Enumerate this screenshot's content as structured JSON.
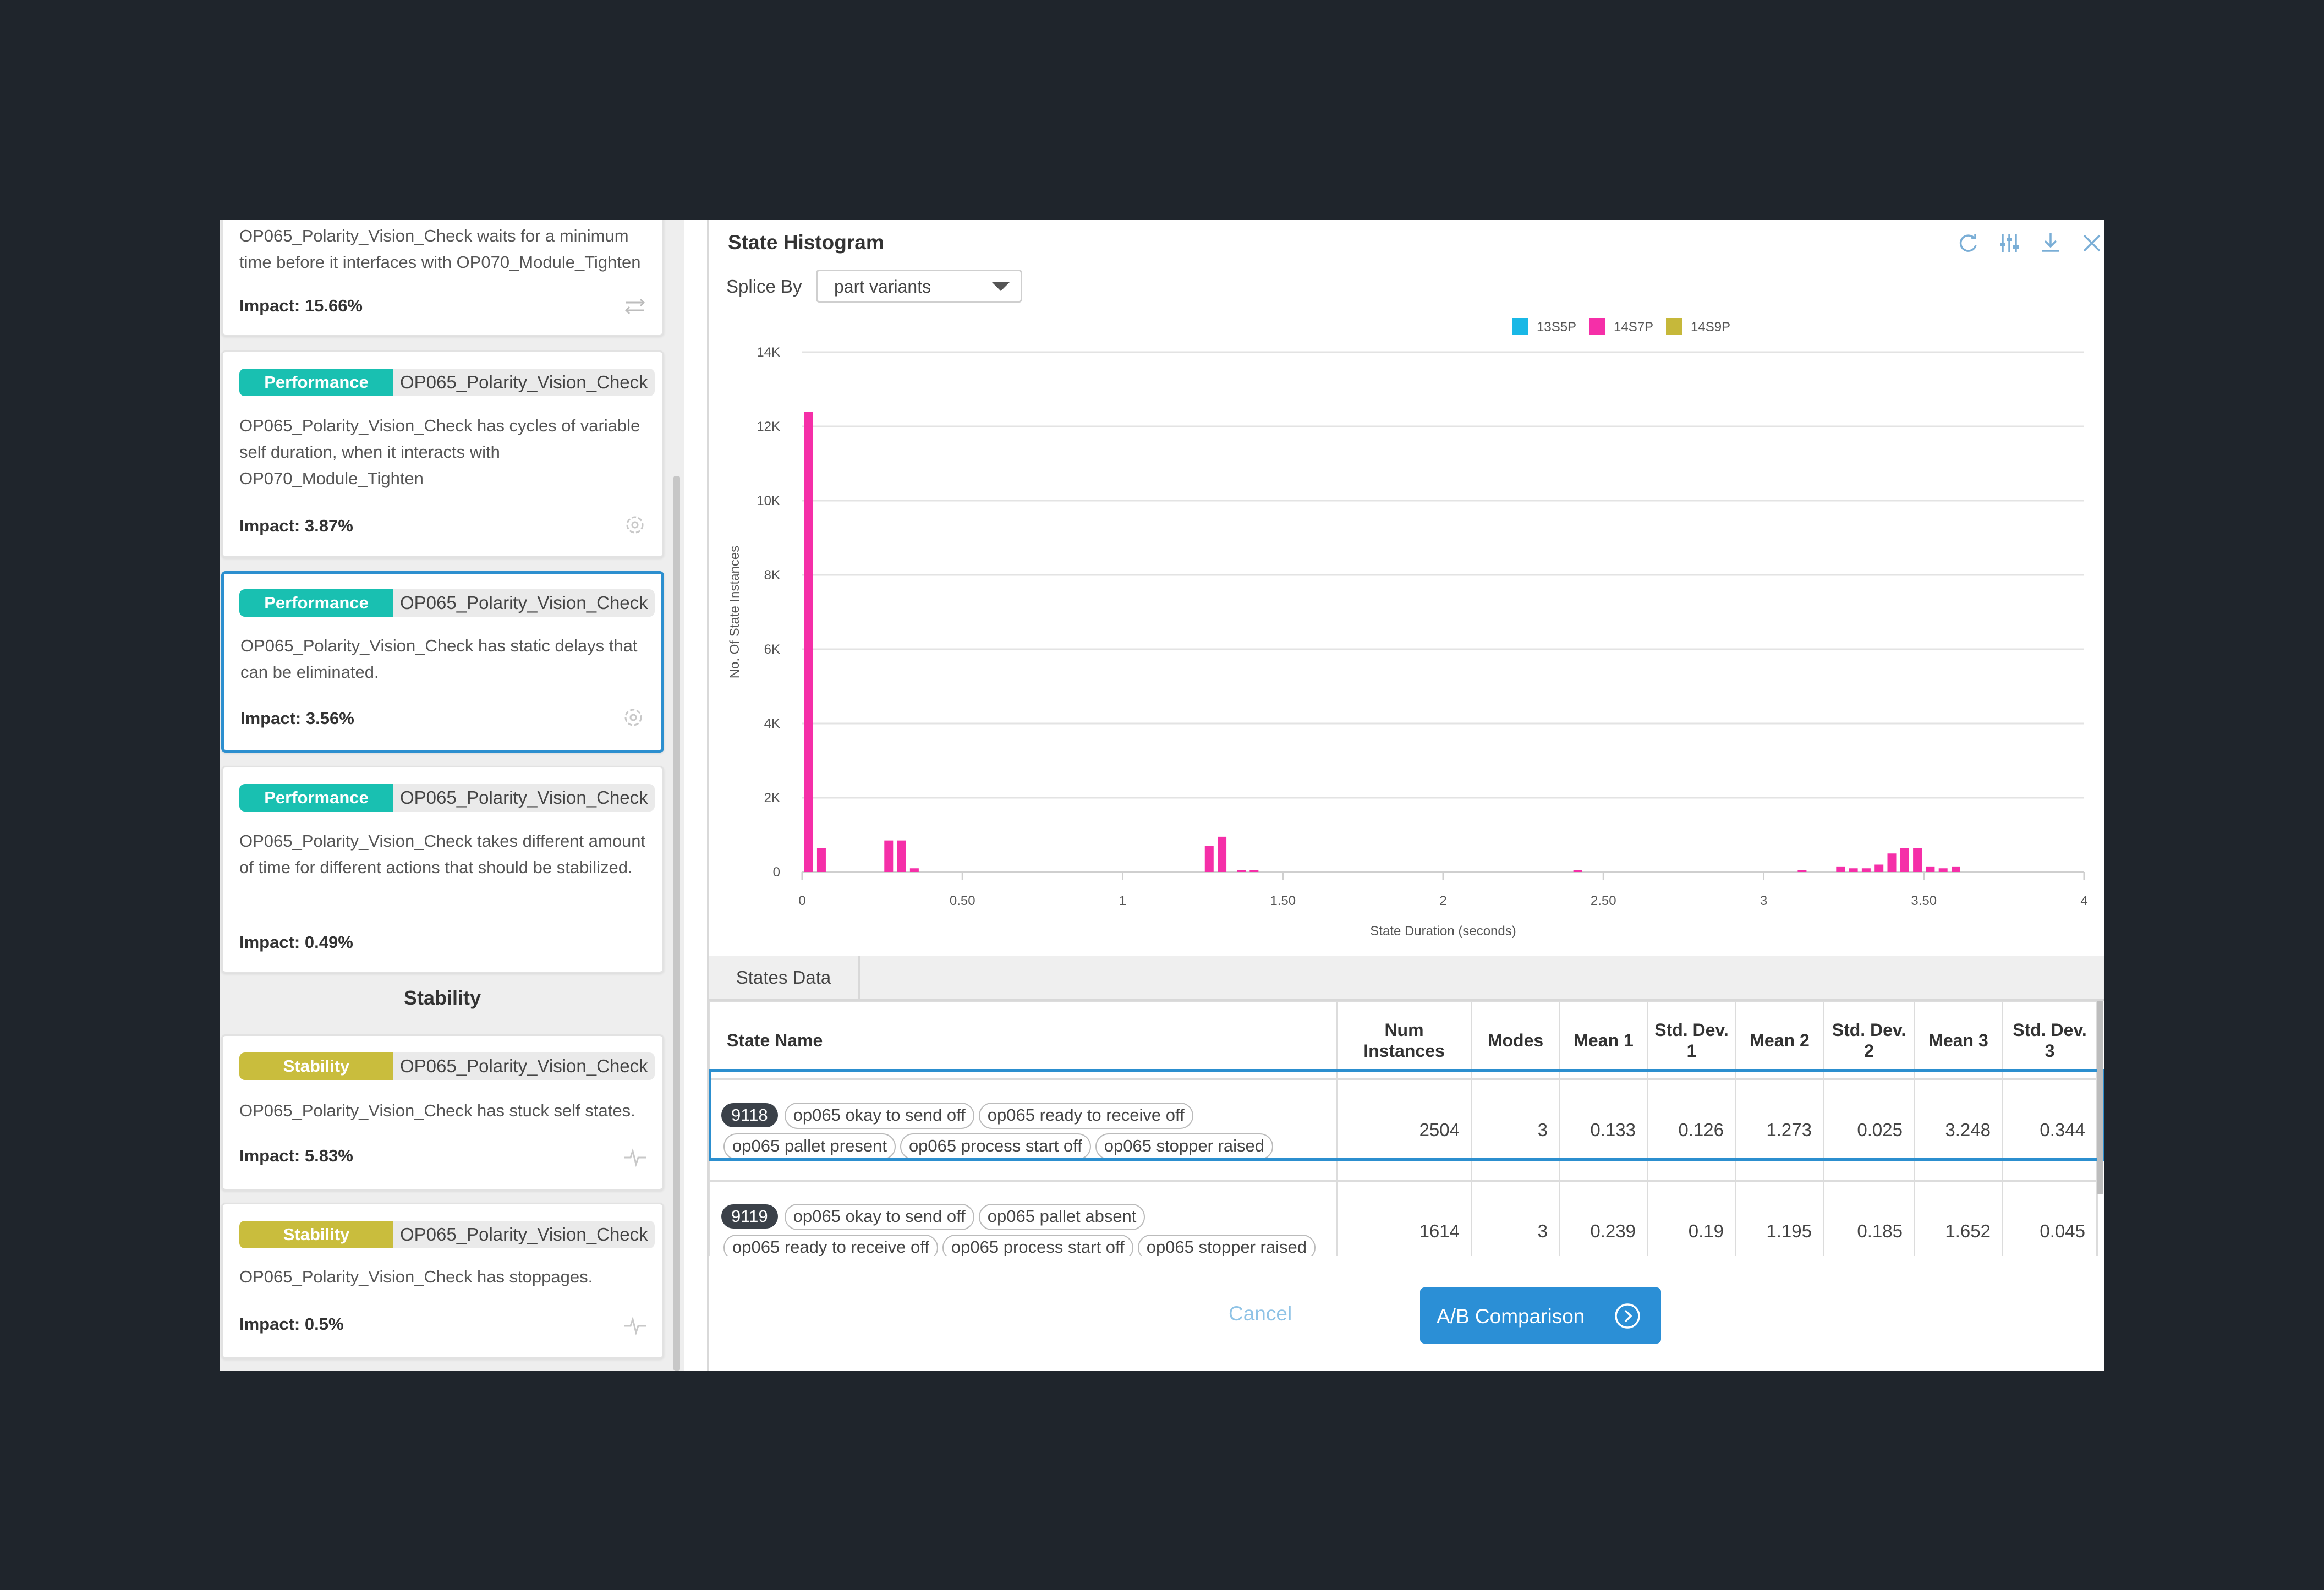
{
  "left_panel": {
    "card0": {
      "description": "OP065_Polarity_Vision_Check waits for a minimum time before it interfaces with OP070_Module_Tighten",
      "impact": "Impact: 15.66%",
      "icon": "swap-arrows-icon"
    },
    "card1": {
      "tag": "Performance",
      "station": "OP065_Polarity_Vision_Check",
      "description": "OP065_Polarity_Vision_Check has cycles of variable self duration, when it interacts with OP070_Module_Tighten",
      "impact": "Impact: 3.87%",
      "icon": "target-icon"
    },
    "card2": {
      "tag": "Performance",
      "station": "OP065_Polarity_Vision_Check",
      "description": "OP065_Polarity_Vision_Check has static delays that can be eliminated.",
      "impact": "Impact: 3.56%",
      "icon": "target-icon"
    },
    "card3": {
      "tag": "Performance",
      "station": "OP065_Polarity_Vision_Check",
      "description": "OP065_Polarity_Vision_Check takes different amount of time for different actions that should be stabilized.",
      "impact": "Impact: 0.49%",
      "icon": "target-icon"
    },
    "stability_header": "Stability",
    "card4": {
      "tag": "Stability",
      "station": "OP065_Polarity_Vision_Check",
      "description": "OP065_Polarity_Vision_Check has stuck self states.",
      "impact": "Impact: 5.83%",
      "icon": "pulse-icon"
    },
    "card5": {
      "tag": "Stability",
      "station": "OP065_Polarity_Vision_Check",
      "description": "OP065_Polarity_Vision_Check has stoppages.",
      "impact": "Impact: 0.5%",
      "icon": "pulse-icon"
    }
  },
  "histogram": {
    "title": "State Histogram",
    "toolbar_icons": [
      "refresh-icon",
      "settings-sliders-icon",
      "download-icon",
      "close-icon"
    ],
    "splice_label": "Splice By",
    "splice_value": "part variants"
  },
  "chart_data": {
    "type": "bar",
    "xlabel": "State Duration (seconds)",
    "ylabel": "No. Of State Instances",
    "xlim": [
      0,
      4
    ],
    "ylim": [
      0,
      14000
    ],
    "x_ticks": [
      "0",
      "0.50",
      "1",
      "1.50",
      "2",
      "2.50",
      "3",
      "3.50",
      "4"
    ],
    "y_ticks": [
      "0",
      "2K",
      "4K",
      "6K",
      "8K",
      "10K",
      "12K",
      "14K"
    ],
    "grid": true,
    "legend_position": "top-center",
    "series": [
      {
        "name": "13S5P",
        "color": "#19b8e6",
        "x": [],
        "values": []
      },
      {
        "name": "14S7P",
        "color": "#f52fa8",
        "x": [
          0.02,
          0.06,
          0.27,
          0.31,
          0.35,
          1.27,
          1.31,
          1.37,
          1.41,
          2.42,
          3.12,
          3.24,
          3.28,
          3.32,
          3.36,
          3.4,
          3.44,
          3.48,
          3.52,
          3.56,
          3.6
        ],
        "values": [
          12400,
          650,
          850,
          850,
          100,
          700,
          950,
          50,
          50,
          50,
          50,
          150,
          100,
          100,
          200,
          500,
          650,
          650,
          150,
          100,
          150
        ]
      },
      {
        "name": "14S9P",
        "color": "#c6b83a",
        "x": [],
        "values": []
      }
    ]
  },
  "states_data": {
    "tab": "States Data",
    "columns": [
      "State Name",
      "Num Instances",
      "Modes",
      "Mean 1",
      "Std. Dev. 1",
      "Mean 2",
      "Std. Dev. 2",
      "Mean 3",
      "Std. Dev. 3"
    ],
    "rows": [
      {
        "id": "9118",
        "states": [
          "op065 okay to send off",
          "op065 ready to receive off",
          "op065 pallet present",
          "op065 process start off",
          "op065 stopper raised"
        ],
        "num_instances": "2504",
        "modes": "3",
        "mean1": "0.133",
        "std1": "0.126",
        "mean2": "1.273",
        "std2": "0.025",
        "mean3": "3.248",
        "std3": "0.344"
      },
      {
        "id": "9119",
        "states": [
          "op065 okay to send off",
          "op065 pallet absent",
          "op065 ready to receive off",
          "op065 process start off",
          "op065 stopper raised"
        ],
        "num_instances": "1614",
        "modes": "3",
        "mean1": "0.239",
        "std1": "0.19",
        "mean2": "1.195",
        "std2": "0.185",
        "mean3": "1.652",
        "std3": "0.045"
      }
    ]
  },
  "footer": {
    "cancel": "Cancel",
    "ab_comparison": "A/B Comparison"
  }
}
